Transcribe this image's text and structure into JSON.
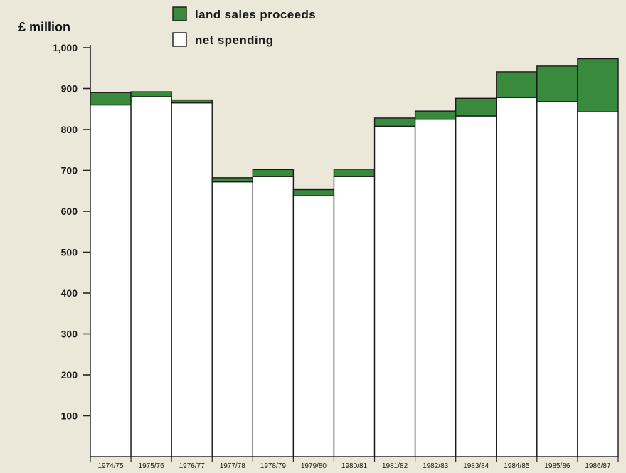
{
  "chart_data": {
    "type": "bar",
    "stacked": true,
    "ylabel": "£ million",
    "ylim": [
      0,
      1000
    ],
    "yticks": [
      100,
      200,
      300,
      400,
      500,
      600,
      700,
      800,
      900,
      1000
    ],
    "ytick_labels": [
      "100",
      "200",
      "300",
      "400",
      "500",
      "600",
      "700",
      "800",
      "900",
      "1,000"
    ],
    "grid": false,
    "legend_placement": "top-center",
    "categories": [
      "1974/75",
      "1975/76",
      "1976/77",
      "1977/78",
      "1978/79",
      "1979/80",
      "1980/81",
      "1981/82",
      "1982/83",
      "1983/84",
      "1984/85",
      "1985/86",
      "1986/87"
    ],
    "series": [
      {
        "name": "net spending",
        "color": "#ffffff",
        "values": [
          860,
          880,
          865,
          672,
          685,
          638,
          685,
          808,
          825,
          833,
          878,
          868,
          843
        ]
      },
      {
        "name": "land sales proceeds",
        "color": "#3a8a3e",
        "values": [
          30,
          12,
          7,
          10,
          17,
          15,
          18,
          20,
          20,
          43,
          63,
          87,
          130
        ]
      }
    ]
  }
}
